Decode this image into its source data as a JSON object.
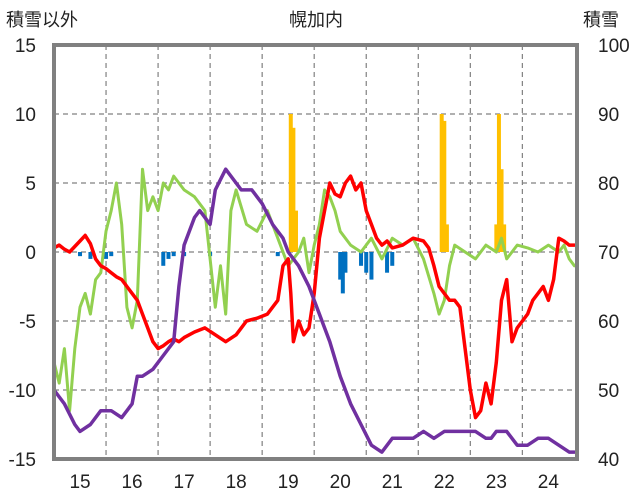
{
  "chart_data": {
    "type": "line",
    "title": "幌加内",
    "left_axis_label": "積雪以外",
    "right_axis_label": "積雪",
    "ylim_left": [
      -15,
      15
    ],
    "ylim_right": [
      40,
      100
    ],
    "y_ticks_left": [
      "15",
      "10",
      "5",
      "0",
      "-5",
      "-10",
      "-15"
    ],
    "y_ticks_right": [
      "100",
      "90",
      "80",
      "70",
      "60",
      "50",
      "40"
    ],
    "x_tick_labels": [
      "15",
      "16",
      "17",
      "18",
      "19",
      "20",
      "21",
      "22",
      "23",
      "24"
    ],
    "xlim": [
      14.5,
      24.55
    ],
    "grid": true,
    "colors": {
      "red_series": "#ff0000",
      "purple_series": "#7030a0",
      "green_series": "#92d050",
      "bar_positive": "#ffc000",
      "bar_negative": "#0070c0",
      "plot_border": "#808080",
      "grid": "#808080"
    },
    "series": [
      {
        "color": "#ff0000",
        "axis": "left",
        "x": [
          14.5,
          14.6,
          14.7,
          14.8,
          14.9,
          15.0,
          15.1,
          15.2,
          15.3,
          15.4,
          15.5,
          15.6,
          15.7,
          15.8,
          15.9,
          16.0,
          16.1,
          16.2,
          16.3,
          16.4,
          16.5,
          16.6,
          16.7,
          16.8,
          16.9,
          17.0,
          17.2,
          17.4,
          17.6,
          17.8,
          18.0,
          18.1,
          18.2,
          18.4,
          18.6,
          18.8,
          18.9,
          19.0,
          19.05,
          19.1,
          19.2,
          19.3,
          19.4,
          19.5,
          19.6,
          19.7,
          19.8,
          19.9,
          20.0,
          20.1,
          20.2,
          20.3,
          20.4,
          20.5,
          20.6,
          20.7,
          20.8,
          20.9,
          21.0,
          21.2,
          21.4,
          21.6,
          21.7,
          21.8,
          21.9,
          22.0,
          22.1,
          22.2,
          22.3,
          22.4,
          22.5,
          22.6,
          22.7,
          22.8,
          22.9,
          23.0,
          23.1,
          23.2,
          23.3,
          23.4,
          23.5,
          23.6,
          23.7,
          23.8,
          23.9,
          24.0,
          24.1,
          24.2,
          24.3,
          24.4,
          24.5
        ],
        "y": [
          0.3,
          0.5,
          0.2,
          0.0,
          0.4,
          0.8,
          1.2,
          0.6,
          -0.5,
          -1.0,
          -1.2,
          -1.5,
          -1.8,
          -2.0,
          -2.5,
          -3.0,
          -3.5,
          -4.5,
          -5.5,
          -6.5,
          -7.0,
          -6.8,
          -6.5,
          -6.3,
          -6.5,
          -6.2,
          -5.8,
          -5.5,
          -6.0,
          -6.5,
          -6.0,
          -5.5,
          -5.0,
          -4.8,
          -4.5,
          -3.5,
          -1.0,
          -0.5,
          -3.0,
          -6.5,
          -5.0,
          -6.0,
          -5.5,
          -3.0,
          1.0,
          3.0,
          5.0,
          4.2,
          4.0,
          5.0,
          5.5,
          4.5,
          5.0,
          3.0,
          2.0,
          1.0,
          0.5,
          0.8,
          0.3,
          0.5,
          1.0,
          0.8,
          0.3,
          -1.0,
          -2.5,
          -3.0,
          -3.5,
          -3.5,
          -4.0,
          -7.0,
          -10.0,
          -12.0,
          -11.5,
          -9.5,
          -11.0,
          -8.0,
          -3.5,
          -2.0,
          -6.5,
          -5.5,
          -5.0,
          -4.5,
          -3.5,
          -3.0,
          -2.5,
          -3.5,
          -2.0,
          1.0,
          0.8,
          0.5,
          0.5
        ]
      },
      {
        "color": "#7030a0",
        "axis": "left",
        "x": [
          14.5,
          14.7,
          14.9,
          15.0,
          15.2,
          15.4,
          15.6,
          15.8,
          16.0,
          16.1,
          16.2,
          16.4,
          16.6,
          16.8,
          16.9,
          17.0,
          17.2,
          17.3,
          17.5,
          17.6,
          17.8,
          18.0,
          18.1,
          18.3,
          18.5,
          18.7,
          18.9,
          19.0,
          19.2,
          19.4,
          19.6,
          19.8,
          20.0,
          20.2,
          20.4,
          20.6,
          20.8,
          21.0,
          21.2,
          21.4,
          21.6,
          21.8,
          22.0,
          22.2,
          22.4,
          22.6,
          22.8,
          22.9,
          23.0,
          23.2,
          23.4,
          23.6,
          23.8,
          24.0,
          24.2,
          24.4,
          24.5
        ],
        "y": [
          -10.0,
          -11.0,
          -12.5,
          -13.0,
          -12.5,
          -11.5,
          -11.5,
          -12.0,
          -11.0,
          -9.0,
          -9.0,
          -8.5,
          -7.5,
          -6.5,
          -2.5,
          0.5,
          2.5,
          3.0,
          2.0,
          4.5,
          6.0,
          5.0,
          4.5,
          4.5,
          3.5,
          2.0,
          1.0,
          0.0,
          -1.0,
          -2.5,
          -4.5,
          -6.5,
          -9.0,
          -11.0,
          -12.5,
          -14.0,
          -14.5,
          -13.5,
          -13.5,
          -13.5,
          -13.0,
          -13.5,
          -13.0,
          -13.0,
          -13.0,
          -13.0,
          -13.5,
          -13.5,
          -13.0,
          -13.0,
          -14.0,
          -14.0,
          -13.5,
          -13.5,
          -14.0,
          -14.5,
          -14.5
        ]
      },
      {
        "color": "#92d050",
        "axis": "left",
        "x": [
          14.5,
          14.6,
          14.7,
          14.8,
          14.9,
          15.0,
          15.1,
          15.2,
          15.3,
          15.4,
          15.5,
          15.6,
          15.7,
          15.8,
          15.9,
          16.0,
          16.1,
          16.2,
          16.3,
          16.4,
          16.5,
          16.6,
          16.7,
          16.8,
          16.9,
          17.0,
          17.2,
          17.4,
          17.6,
          17.7,
          17.8,
          17.9,
          18.0,
          18.2,
          18.4,
          18.6,
          18.8,
          19.0,
          19.1,
          19.2,
          19.3,
          19.4,
          19.5,
          19.6,
          19.7,
          19.8,
          19.9,
          20.0,
          20.2,
          20.4,
          20.6,
          20.8,
          21.0,
          21.2,
          21.4,
          21.6,
          21.8,
          21.9,
          22.0,
          22.1,
          22.2,
          22.4,
          22.6,
          22.8,
          23.0,
          23.1,
          23.2,
          23.4,
          23.6,
          23.8,
          24.0,
          24.2,
          24.3,
          24.4,
          24.5
        ],
        "y": [
          -8.0,
          -9.5,
          -7.0,
          -11.5,
          -7.0,
          -4.0,
          -3.0,
          -4.5,
          -2.0,
          -1.5,
          1.5,
          3.0,
          5.0,
          2.0,
          -4.0,
          -5.5,
          -3.5,
          6.0,
          3.0,
          4.0,
          3.0,
          5.0,
          4.5,
          5.5,
          5.0,
          4.5,
          4.0,
          3.0,
          -4.0,
          -1.0,
          -4.5,
          3.0,
          4.5,
          2.0,
          1.5,
          3.0,
          1.0,
          -1.0,
          -0.5,
          0.0,
          1.0,
          -1.5,
          0.5,
          2.0,
          4.5,
          4.0,
          3.0,
          1.5,
          0.5,
          0.0,
          1.0,
          -0.5,
          1.0,
          0.5,
          1.0,
          -0.5,
          -3.0,
          -4.5,
          -3.5,
          -1.0,
          0.5,
          0.0,
          -0.5,
          0.5,
          0.0,
          1.0,
          -0.5,
          0.5,
          0.3,
          0.0,
          0.5,
          0.0,
          0.5,
          -0.5,
          -1.0
        ]
      }
    ],
    "bars": {
      "axis": "left",
      "x": [
        19.05,
        19.1,
        19.15,
        21.95,
        22.0,
        22.05,
        23.0,
        23.05,
        23.1,
        23.15,
        15.0,
        15.2,
        15.5,
        15.6,
        16.6,
        16.7,
        16.8,
        17.0,
        17.5,
        18.8,
        20.0,
        20.05,
        20.1,
        20.4,
        20.5,
        20.6,
        20.9,
        21.0
      ],
      "values": [
        10.0,
        9.0,
        3.0,
        10.0,
        9.5,
        2.0,
        2.0,
        10.0,
        6.0,
        2.0,
        -0.3,
        -0.5,
        -0.5,
        -0.3,
        -1.0,
        -0.5,
        -0.3,
        -0.3,
        -0.3,
        -0.3,
        -2.0,
        -3.0,
        -1.5,
        -1.0,
        -1.5,
        -2.0,
        -1.5,
        -1.0
      ]
    }
  }
}
